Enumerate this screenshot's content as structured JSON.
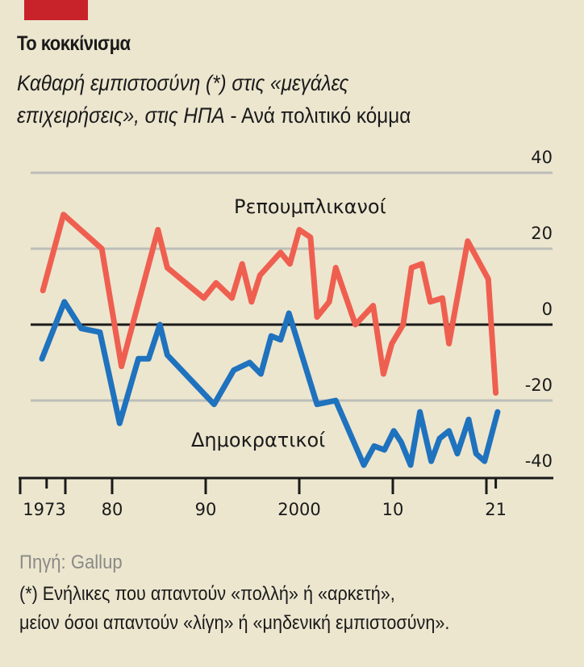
{
  "header": {
    "title": "Το κοκκίνισμα",
    "subtitle_italic_1": "Καθαρή εμπιστοσύνη (*) στις «μεγάλες",
    "subtitle_italic_2": "επιχειρήσεις», στις ΗΠΑ",
    "subtitle_plain": " - Ανά πολιτικό κόμμα"
  },
  "footer": {
    "source": "Πηγή: Gallup",
    "note_line1": "(*) Ενήλικες που απαντούν «πολλή» ή «αρκετή»,",
    "note_line2": "μείον όσοι απαντούν «λίγη» ή «μηδενική εμπιστοσύνη»."
  },
  "colors": {
    "background": "#ece6cf",
    "brand": "#c8232b",
    "republicans": "#ef5f50",
    "democrats": "#1f72bd",
    "grid": "#bdbdb8",
    "axis": "#1a1a1a"
  },
  "chart_data": {
    "type": "line",
    "title": "Το κοκκίνισμα",
    "subtitle": "Καθαρή εμπιστοσύνη (*) στις «μεγάλες επιχειρήσεις», στις ΗΠΑ - Ανά πολιτικό κόμμα",
    "xlabel": "",
    "ylabel": "",
    "xlim": [
      1970,
      2025
    ],
    "ylim": [
      -40,
      40
    ],
    "grid": true,
    "y_ticks": [
      40,
      20,
      0,
      -20,
      -40
    ],
    "y_tick_labels": [
      "40",
      "20",
      "0",
      "-20",
      "-40"
    ],
    "x_ticks": [
      1970,
      1973,
      1975,
      1980,
      1990,
      2000,
      2010,
      2020,
      2021
    ],
    "x_tick_labels": [
      {
        "year": 1973,
        "label": "1973"
      },
      {
        "year": 1980,
        "label": "80"
      },
      {
        "year": 1990,
        "label": "90"
      },
      {
        "year": 2000,
        "label": "2000"
      },
      {
        "year": 2010,
        "label": "10"
      },
      {
        "year": 2021,
        "label": "21"
      }
    ],
    "series": [
      {
        "name": "Ρεπουμπλικανοί",
        "color": "#ef5f50",
        "x": [
          1972.6,
          1974.8,
          1978.9,
          1981,
          1984.9,
          1985.9,
          1989.8,
          1991.1,
          1992.8,
          1993.9,
          1994.9,
          1995.8,
          1998,
          1999,
          2000,
          2001.2,
          2001.9,
          2003.2,
          2003.9,
          2006,
          2007.9,
          2009,
          2009.9,
          2011.1,
          2012,
          2013.1,
          2014,
          2015.3,
          2016,
          2018,
          2020.2,
          2021
        ],
        "y": [
          9,
          29,
          20,
          -11,
          25,
          15,
          7,
          11,
          7,
          16,
          6,
          13,
          19,
          16,
          25,
          23,
          2,
          6,
          15,
          0,
          5,
          -13,
          -5,
          0,
          15,
          16,
          6,
          7,
          -5,
          22,
          12,
          -18
        ]
      },
      {
        "name": "Δημοκρατικοί",
        "color": "#1f72bd",
        "x": [
          1972.5,
          1974.9,
          1976.7,
          1978.7,
          1980.8,
          1982.8,
          1983.9,
          1985.1,
          1985.9,
          1990.9,
          1993,
          1994.7,
          1995.9,
          1997,
          1998,
          1998.9,
          2001.9,
          2003.9,
          2006.9,
          2008,
          2009.1,
          2010.1,
          2010.9,
          2011.9,
          2012.9,
          2014.1,
          2015,
          2016,
          2016.9,
          2018.1,
          2018.9,
          2019.8,
          2021.2
        ],
        "y": [
          -9,
          6,
          -1,
          -2,
          -26,
          -9,
          -9,
          0,
          -8,
          -21,
          -12,
          -10,
          -13,
          -3,
          -4,
          3,
          -21,
          -20,
          -37,
          -32,
          -33,
          -28,
          -31,
          -37,
          -23,
          -36,
          -30,
          -28,
          -34,
          -25,
          -34,
          -36,
          -23
        ]
      }
    ],
    "annotations": [
      {
        "text": "Ρεπουμπλικανοί",
        "series": "Ρεπουμπλικανοί"
      },
      {
        "text": "Δημοκρατικοί",
        "series": "Δημοκρατικοί"
      }
    ],
    "legend": "inline"
  }
}
